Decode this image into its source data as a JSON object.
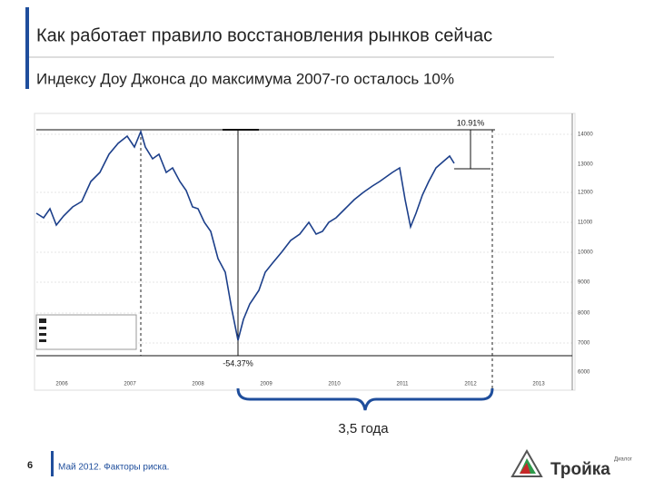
{
  "header": {
    "title": "Как работает правило восстановления рынков сейчас",
    "subtitle": "Индексу Доу Джонса до максимума 2007-го осталось 10%"
  },
  "chart_image": {
    "annotations": {
      "rise": "10.91%",
      "drop": "-54.37%",
      "span": "3,5 года"
    },
    "years": [
      "2006",
      "2007",
      "2008",
      "2009",
      "2010",
      "2011",
      "2012",
      "2013"
    ],
    "y_labels": [
      "14000",
      "13000",
      "12000",
      "11000",
      "10000",
      "9000",
      "8000",
      "7000",
      "6000"
    ]
  },
  "footer": {
    "page": "6",
    "text": "Май 2012. Факторы риска.",
    "logo": "Тройка",
    "logo_sub": "Диалог"
  }
}
